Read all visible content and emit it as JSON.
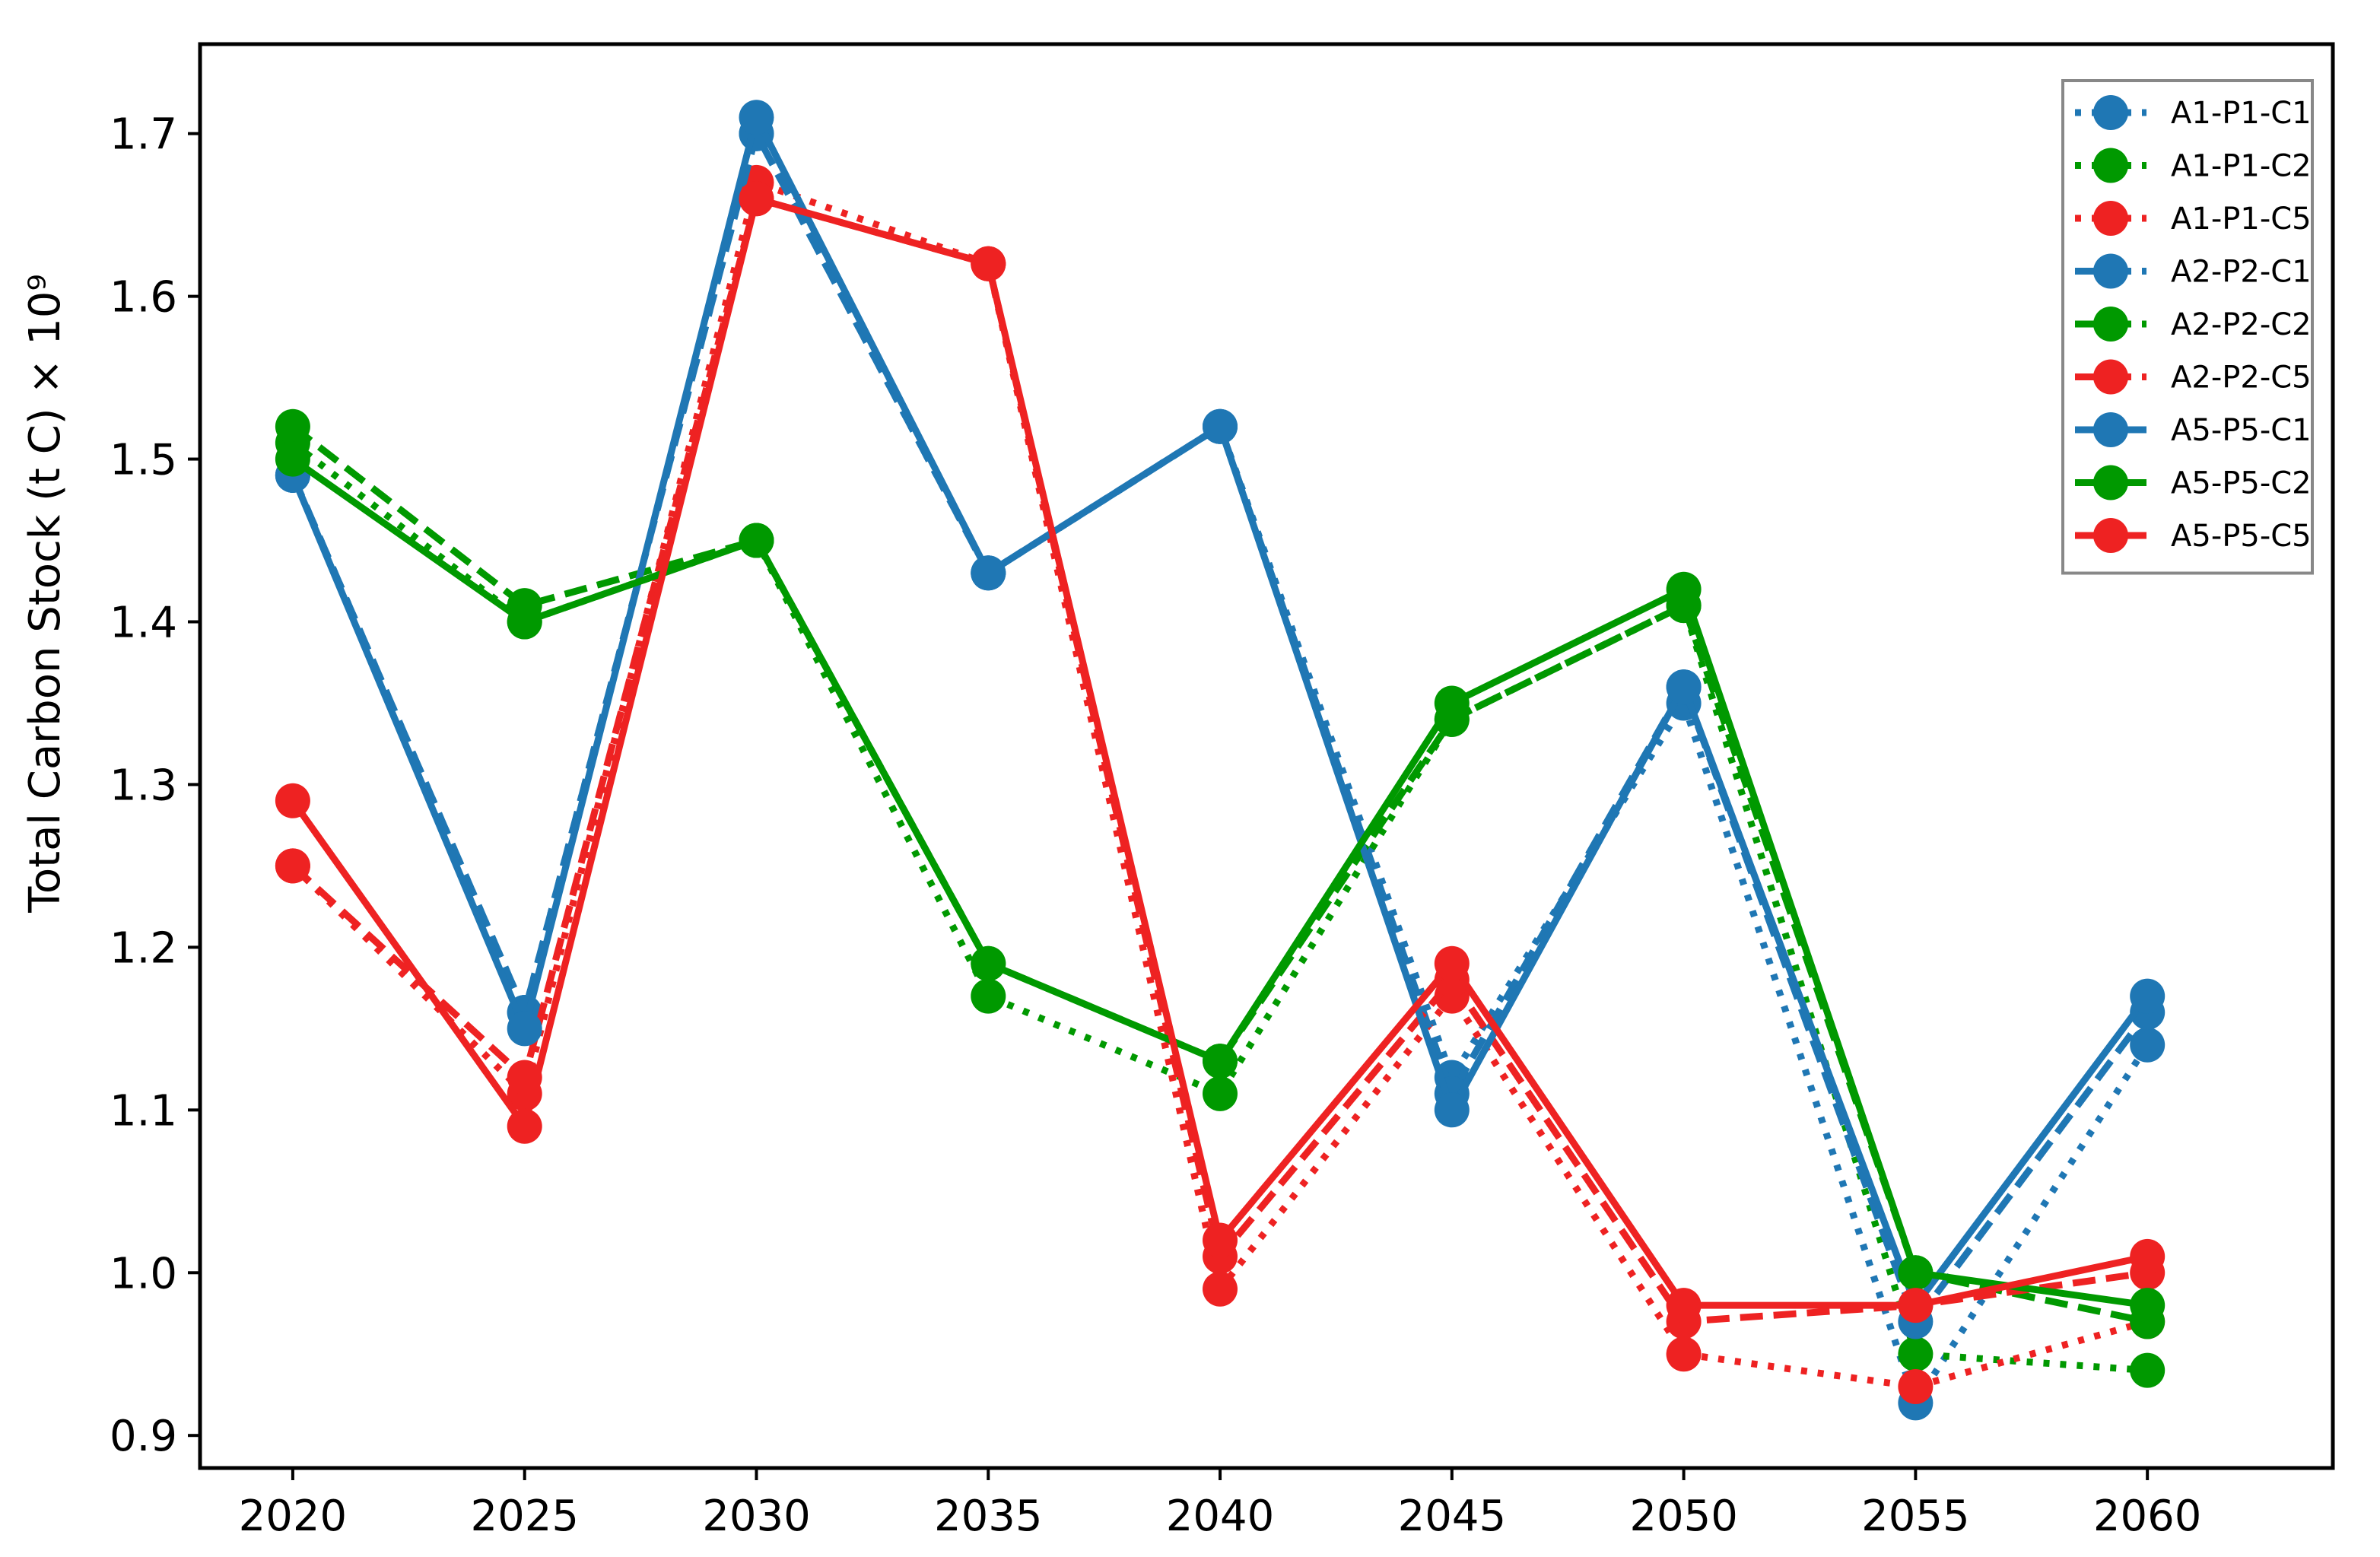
{
  "chart_data": {
    "type": "line",
    "title": "",
    "xlabel": "",
    "ylabel": "Total Carbon Stock (t C) × 10⁹",
    "x": [
      2020,
      2025,
      2030,
      2035,
      2040,
      2045,
      2050,
      2055,
      2060
    ],
    "xticks": [
      "2020",
      "2025",
      "2030",
      "2035",
      "2040",
      "2045",
      "2050",
      "2055",
      "2060"
    ],
    "yticks": [
      "0.9",
      "1.0",
      "1.1",
      "1.2",
      "1.3",
      "1.4",
      "1.5",
      "1.6",
      "1.7"
    ],
    "xlim": [
      2018,
      2064
    ],
    "ylim": [
      0.88,
      1.755
    ],
    "grid": false,
    "legend_position": "top-right",
    "series": [
      {
        "name": "A1-P1-C1",
        "color": "#1f77b4",
        "linestyle": "dotted",
        "values": [
          1.49,
          1.16,
          1.7,
          1.43,
          1.52,
          1.12,
          1.35,
          0.92,
          1.14
        ]
      },
      {
        "name": "A1-P1-C2",
        "color": "#009900",
        "linestyle": "dotted",
        "values": [
          1.51,
          1.4,
          1.45,
          1.17,
          1.11,
          1.34,
          1.41,
          0.95,
          0.94
        ]
      },
      {
        "name": "A1-P1-C5",
        "color": "#ee2222",
        "linestyle": "dotted",
        "values": [
          1.25,
          1.11,
          1.67,
          1.62,
          0.99,
          1.17,
          0.95,
          0.93,
          0.97
        ]
      },
      {
        "name": "A2-P2-C1",
        "color": "#1f77b4",
        "linestyle": "dashed",
        "values": [
          1.49,
          1.16,
          1.7,
          1.43,
          1.52,
          1.11,
          1.36,
          0.97,
          1.16
        ]
      },
      {
        "name": "A2-P2-C2",
        "color": "#009900",
        "linestyle": "dashed",
        "values": [
          1.52,
          1.41,
          1.45,
          1.19,
          1.13,
          1.34,
          1.41,
          1.0,
          0.97
        ]
      },
      {
        "name": "A2-P2-C5",
        "color": "#ee2222",
        "linestyle": "dashed",
        "values": [
          1.25,
          1.12,
          1.66,
          1.62,
          1.01,
          1.18,
          0.97,
          0.98,
          1.0
        ]
      },
      {
        "name": "A5-P5-C1",
        "color": "#1f77b4",
        "linestyle": "solid",
        "values": [
          1.49,
          1.15,
          1.71,
          1.43,
          1.52,
          1.1,
          1.36,
          0.98,
          1.17
        ]
      },
      {
        "name": "A5-P5-C2",
        "color": "#009900",
        "linestyle": "solid",
        "values": [
          1.5,
          1.4,
          1.45,
          1.19,
          1.13,
          1.35,
          1.42,
          1.0,
          0.98
        ]
      },
      {
        "name": "A5-P5-C5",
        "color": "#ee2222",
        "linestyle": "solid",
        "values": [
          1.29,
          1.09,
          1.66,
          1.62,
          1.02,
          1.19,
          0.98,
          0.98,
          1.01
        ]
      }
    ]
  }
}
